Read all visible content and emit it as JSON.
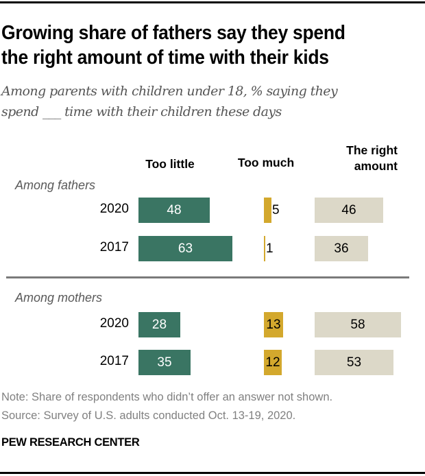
{
  "header": {
    "title_line1": "Growing share of fathers say they spend",
    "title_line2": "the right amount of time with their kids",
    "subtitle_line1": "Among parents with children under 18, % saying they",
    "subtitle_line2": "spend ___ time with their children these days"
  },
  "footer": {
    "note": "Note: Share of respondents who didn’t offer an answer not shown.",
    "source": "Source: Survey of U.S. adults conducted Oct. 13-19, 2020.",
    "brand": "PEW RESEARCH CENTER"
  },
  "colors": {
    "too_little": "#3a7563",
    "too_much": "#d3a82d",
    "right_amount": "#dcd8c8"
  },
  "chart_data": {
    "type": "bar",
    "orientation": "horizontal",
    "title": "Growing share of fathers say they spend the right amount of time with their kids",
    "subtitle": "Among parents with children under 18, % saying they spend ___ time with their children these days",
    "series_labels": [
      "Too little",
      "Too much",
      "The right amount"
    ],
    "series_header_lines": [
      [
        "Too little"
      ],
      [
        "Too much"
      ],
      [
        "The right",
        "amount"
      ]
    ],
    "groups": [
      {
        "name": "Among fathers",
        "rows": [
          {
            "year": "2020",
            "too_little": 48,
            "too_much": 5,
            "right_amount": 46
          },
          {
            "year": "2017",
            "too_little": 63,
            "too_much": 1,
            "right_amount": 36
          }
        ]
      },
      {
        "name": "Among mothers",
        "rows": [
          {
            "year": "2020",
            "too_little": 28,
            "too_much": 13,
            "right_amount": 58
          },
          {
            "year": "2017",
            "too_little": 35,
            "too_much": 12,
            "right_amount": 53
          }
        ]
      }
    ],
    "unit": "%"
  }
}
